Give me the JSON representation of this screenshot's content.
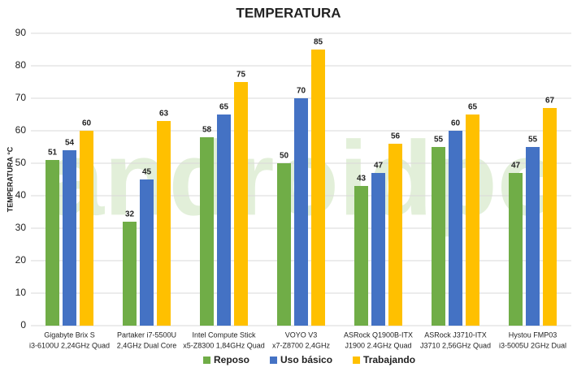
{
  "chart_data": {
    "type": "bar",
    "title": "TEMPERATURA",
    "y_label": "TEMPERATURA °C",
    "watermark": "androidpc",
    "categories": [
      [
        "Gigabyte Brix S",
        "i3-6100U 2,24GHz Quad"
      ],
      [
        "Partaker i7-5500U",
        "2,4GHz Dual Core"
      ],
      [
        "Intel Compute Stick",
        "x5-Z8300 1,84GHz Quad"
      ],
      [
        "VOYO V3",
        "x7-Z8700 2,4GHz"
      ],
      [
        "ASRock Q1900B-ITX",
        "J1900 2.4GHz Quad"
      ],
      [
        "ASRock J3710-ITX",
        "J3710 2,56GHz Quad"
      ],
      [
        "Hystou FMP03",
        "i3-5005U 2GHz Dual"
      ]
    ],
    "series": [
      {
        "name": "Reposo",
        "color": "#70ad47",
        "values": [
          51,
          32,
          58,
          50,
          43,
          55,
          47
        ]
      },
      {
        "name": "Uso básico",
        "color": "#4472c4",
        "values": [
          54,
          45,
          65,
          70,
          47,
          60,
          55
        ]
      },
      {
        "name": "Trabajando",
        "color": "#ffc000",
        "values": [
          60,
          63,
          75,
          85,
          56,
          65,
          67
        ]
      }
    ],
    "ylim": [
      0,
      90
    ],
    "yticks": [
      0,
      10,
      20,
      30,
      40,
      50,
      60,
      70,
      80,
      90
    ],
    "grid": true,
    "legend": "bottom"
  }
}
